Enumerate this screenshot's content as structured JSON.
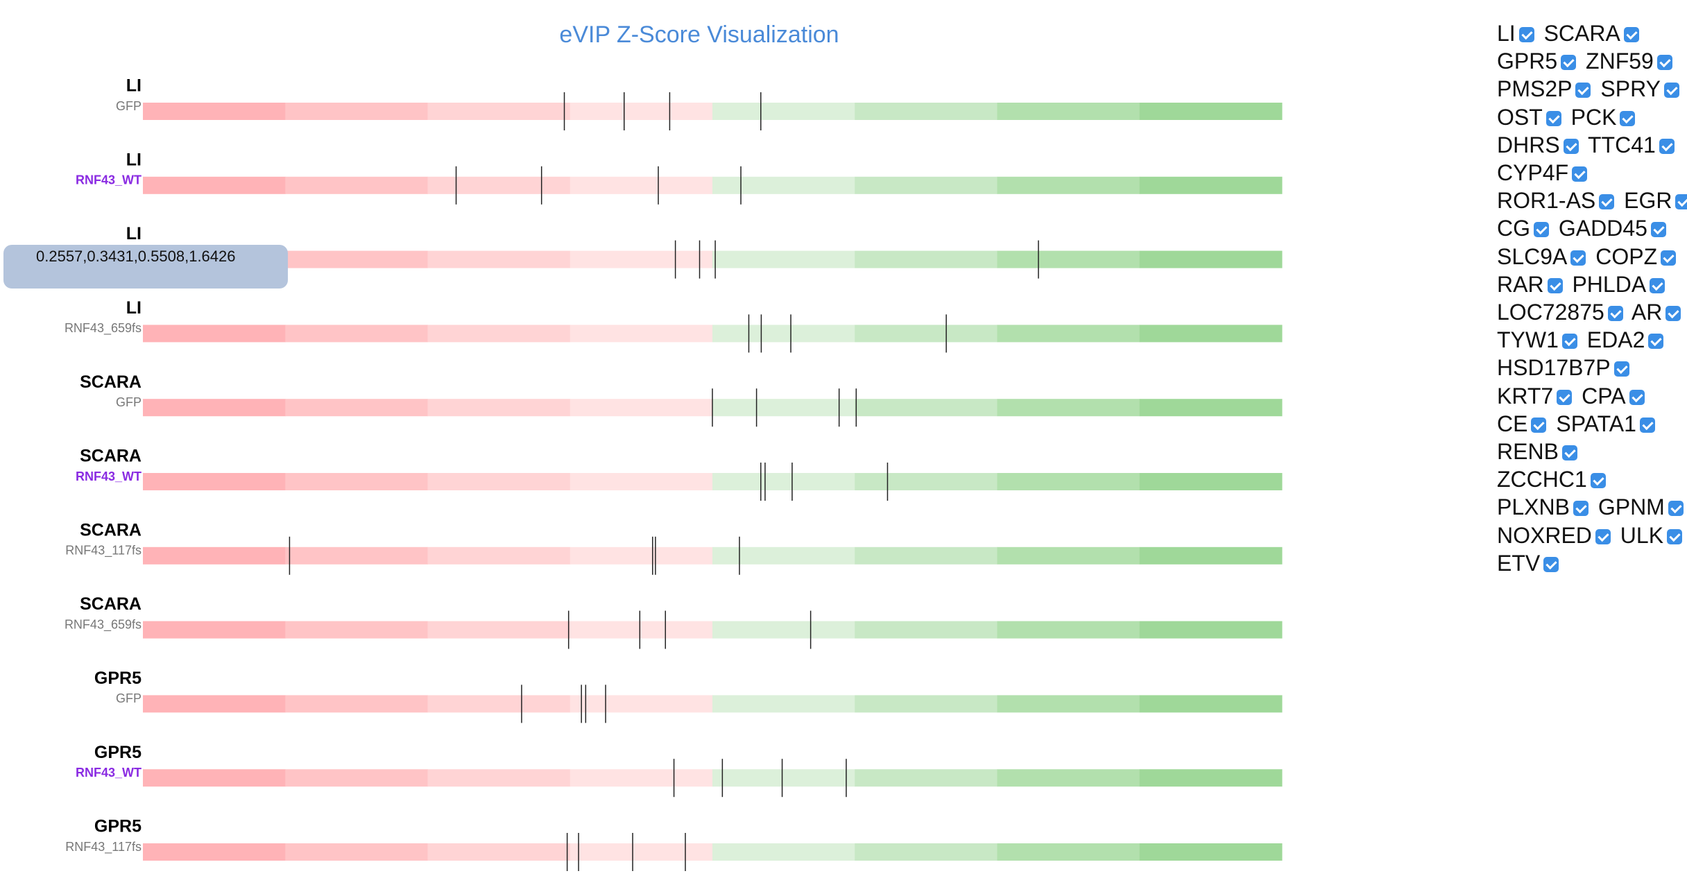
{
  "header": {
    "title": "eVIP Z-Score Visualization"
  },
  "xlim": [
    -4,
    4
  ],
  "rows": [
    {
      "gene": "LI",
      "variant": "GFP",
      "z": [
        -1.04,
        -0.62,
        -0.3,
        0.34
      ]
    },
    {
      "gene": "LI",
      "variant": "RNF43_WT",
      "z": [
        -1.8,
        -1.2,
        -0.38,
        0.2
      ]
    },
    {
      "gene": "LI",
      "variant": null,
      "z": [
        -0.26,
        -0.09,
        0.02,
        2.29
      ]
    },
    {
      "gene": "LI",
      "variant": "RNF43_659fs",
      "z": [
        0.2557,
        0.3431,
        0.5508,
        1.6426
      ]
    },
    {
      "gene": "SCARA",
      "variant": "GFP",
      "z": [
        0.0,
        0.31,
        0.89,
        1.01
      ]
    },
    {
      "gene": "SCARA",
      "variant": "RNF43_WT",
      "z": [
        0.34,
        0.37,
        0.56,
        1.23
      ]
    },
    {
      "gene": "SCARA",
      "variant": "RNF43_117fs",
      "z": [
        -2.97,
        -0.42,
        -0.4,
        0.19
      ]
    },
    {
      "gene": "SCARA",
      "variant": "RNF43_659fs",
      "z": [
        -1.01,
        -0.51,
        -0.33,
        0.69
      ]
    },
    {
      "gene": "GPR5",
      "variant": "GFP",
      "z": [
        -1.34,
        -0.92,
        -0.89,
        -0.75
      ]
    },
    {
      "gene": "GPR5",
      "variant": "RNF43_WT",
      "z": [
        -0.27,
        0.07,
        0.49,
        0.94
      ]
    },
    {
      "gene": "GPR5",
      "variant": "RNF43_117fs",
      "z": [
        -1.02,
        -0.94,
        -0.56,
        -0.19
      ]
    }
  ],
  "tooltip": "0.2557,0.3431,0.5508,1.6426",
  "selector": {
    "items": [
      "LI",
      "SCARA",
      "GPR5",
      "ZNF59",
      "PMS2P",
      "SPRY",
      "OST",
      "PCK",
      "DHRS",
      "TTC41",
      "CYP4F",
      "ROR1-AS",
      "EGR",
      "CG",
      "GADD45",
      "SLC9A",
      "COPZ",
      "RAR",
      "PHLDA",
      "LOC72875",
      "AR",
      "TYW1",
      "EDA2",
      "HSD17B7P",
      "KRT7",
      "CPA",
      "CE",
      "SPATA1",
      "RENB",
      "ZCCHC1",
      "PLXNB",
      "GPNM",
      "NOXRED",
      "ULK",
      "ETV"
    ]
  }
}
